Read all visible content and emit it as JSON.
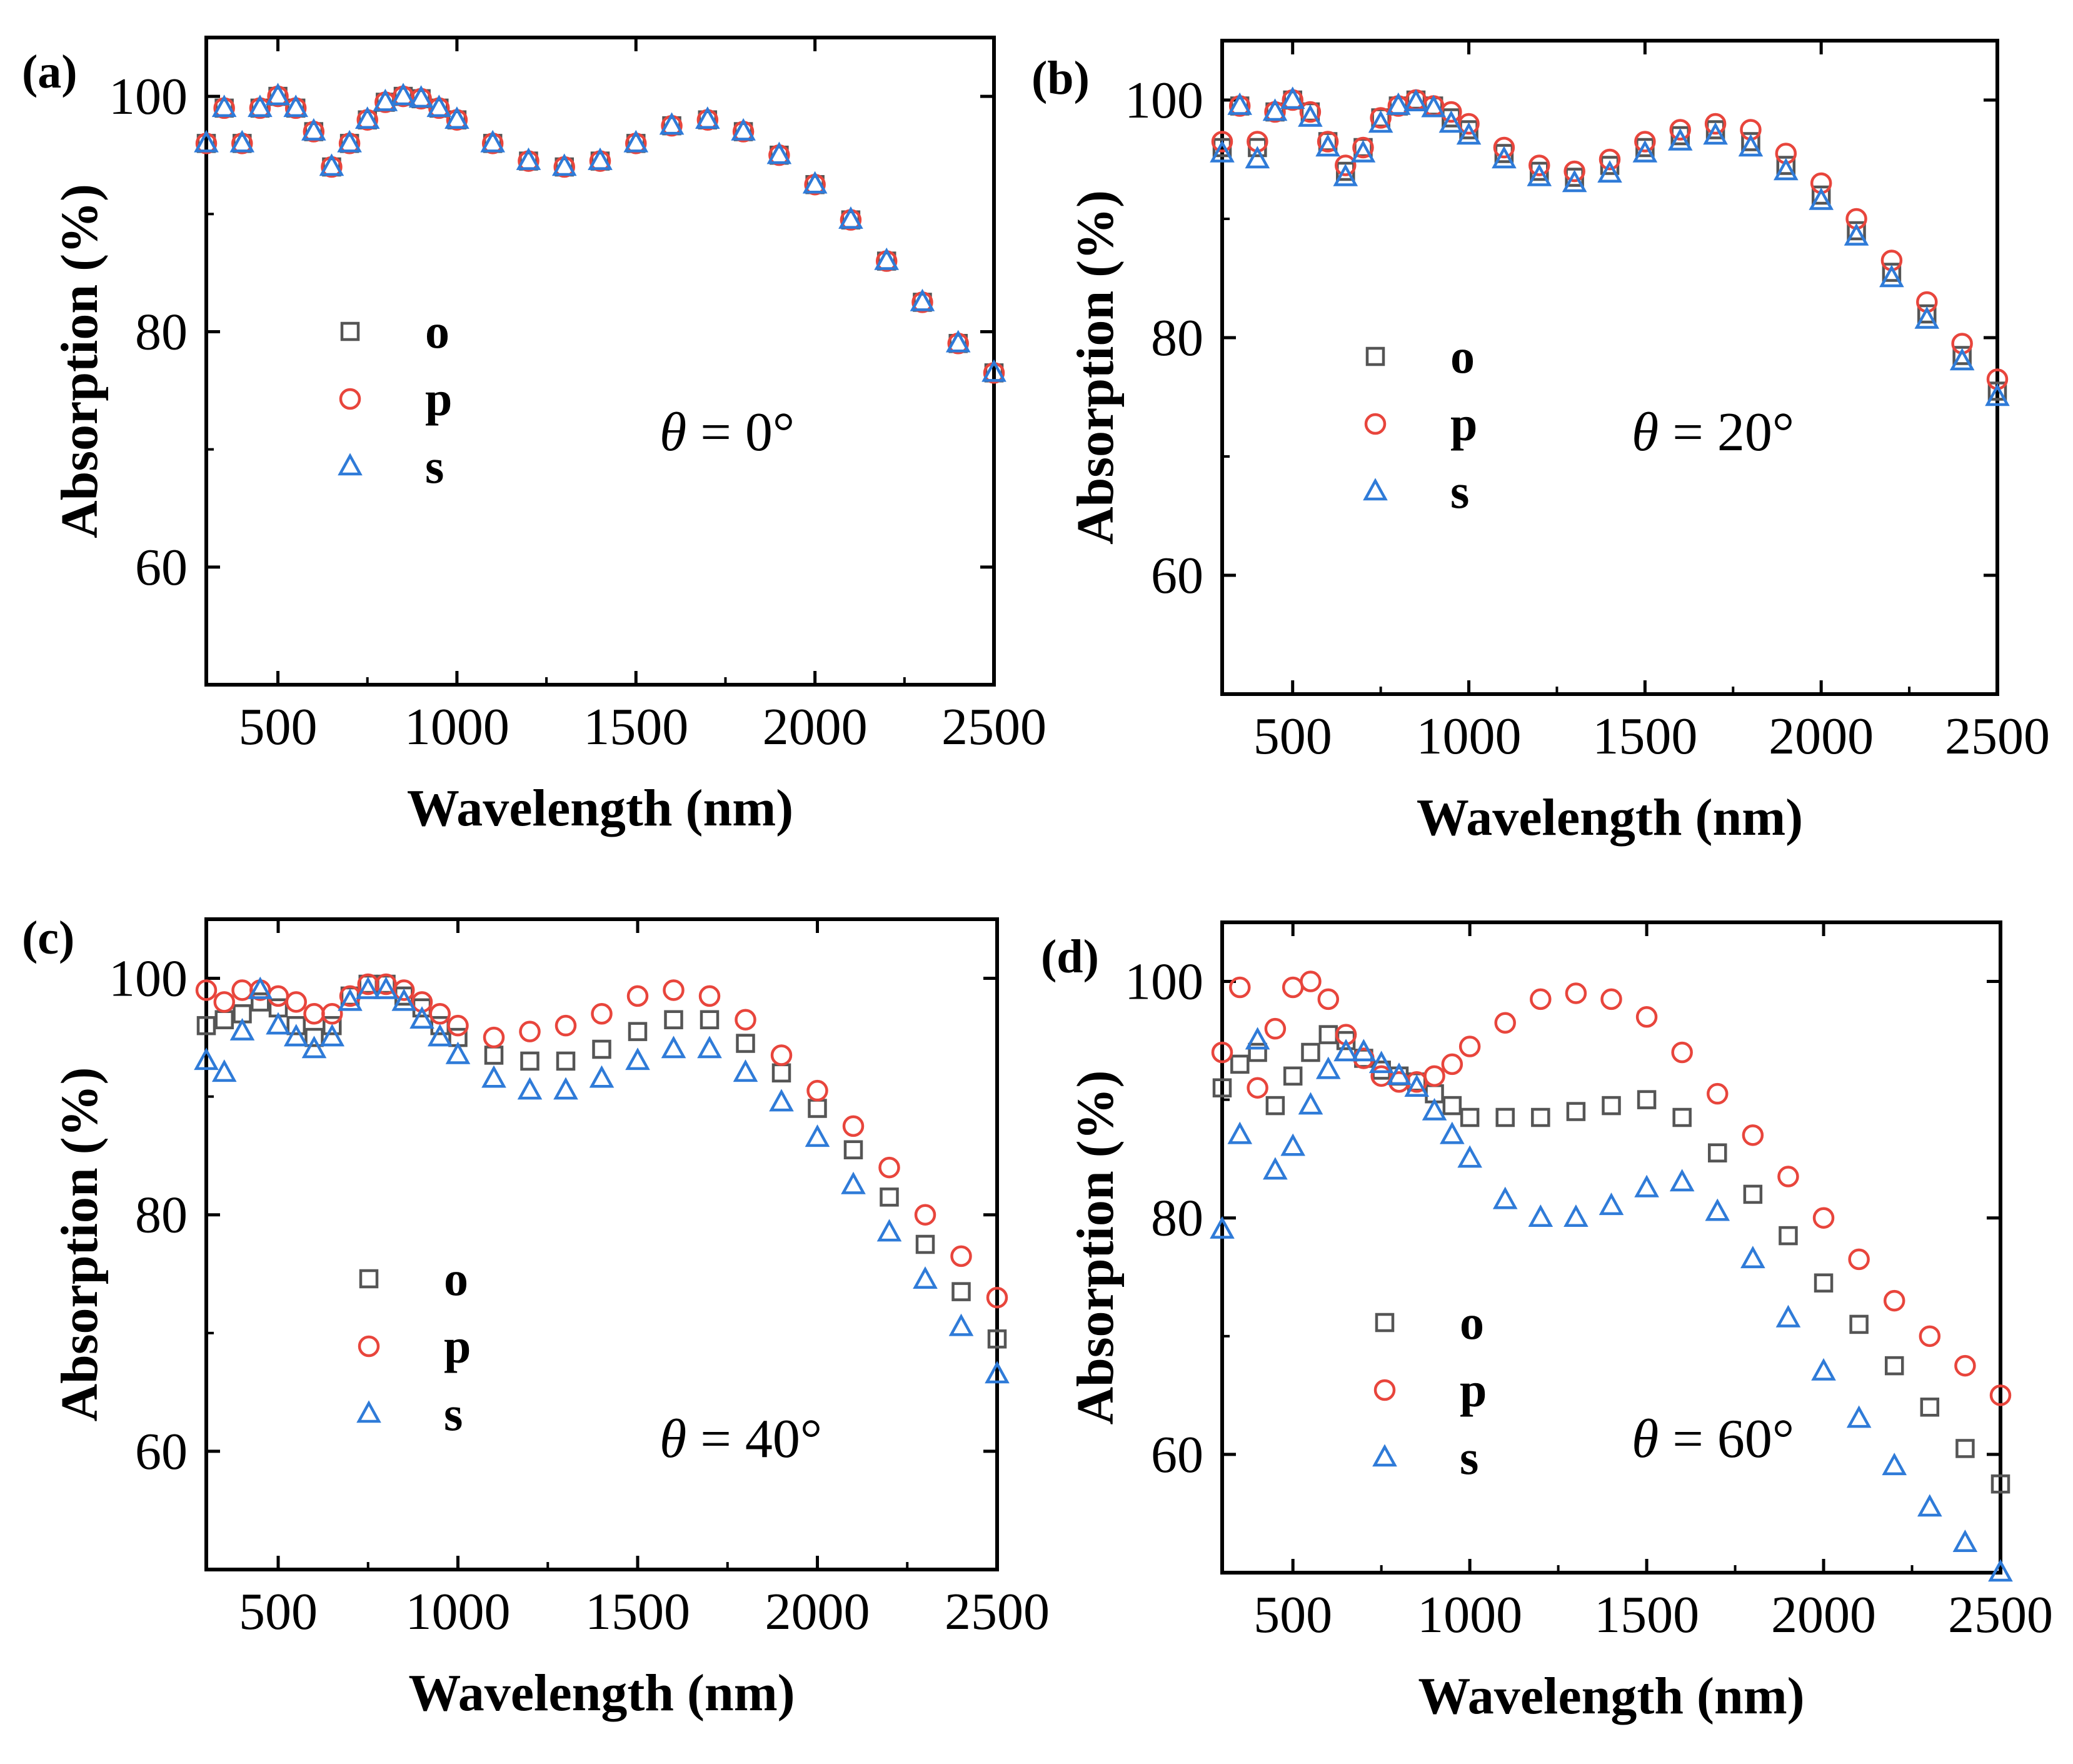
{
  "figure": {
    "series_styles": {
      "o": {
        "marker": "square",
        "color": "#555555"
      },
      "p": {
        "marker": "circle",
        "color": "#e8453c"
      },
      "s": {
        "marker": "triangle",
        "color": "#2f7bd8"
      }
    }
  },
  "chart_data": [
    {
      "type": "scatter",
      "panel_label": "(a)",
      "annotation_symbol": "θ",
      "annotation_value": " = 0°",
      "xlabel": "Wavelength (nm)",
      "ylabel": "Absorption (%)",
      "xlim": [
        300,
        2500
      ],
      "ylim": [
        50,
        105
      ],
      "xticks": [
        500,
        1000,
        1500,
        2000,
        2500
      ],
      "yticks": [
        60,
        80,
        100
      ],
      "legend": [
        "o",
        "p",
        "s"
      ],
      "x": [
        300,
        350,
        400,
        450,
        500,
        550,
        600,
        650,
        700,
        750,
        800,
        850,
        900,
        950,
        1000,
        1100,
        1200,
        1300,
        1400,
        1500,
        1600,
        1700,
        1800,
        1900,
        2000,
        2100,
        2200,
        2300,
        2400,
        2500
      ],
      "series": [
        {
          "name": "o",
          "values": [
            96,
            99,
            96,
            99,
            100,
            99,
            97,
            94,
            96,
            98,
            99.5,
            100,
            99.8,
            99,
            98,
            96,
            94.5,
            94,
            94.5,
            96,
            97.5,
            98,
            97,
            95,
            92.5,
            89.5,
            86,
            82.5,
            79,
            76.5
          ]
        },
        {
          "name": "p",
          "values": [
            96,
            99,
            96,
            99,
            100,
            99,
            97,
            94,
            96,
            98,
            99.5,
            100,
            99.8,
            99,
            98,
            96,
            94.5,
            94,
            94.5,
            96,
            97.5,
            98,
            97,
            95,
            92.5,
            89.5,
            86,
            82.5,
            79,
            76.5
          ]
        },
        {
          "name": "s",
          "values": [
            96,
            99,
            96,
            99,
            100,
            99,
            97,
            94,
            96,
            98,
            99.5,
            100,
            99.8,
            99,
            98,
            96,
            94.5,
            94,
            94.5,
            96,
            97.5,
            98,
            97,
            95,
            92.5,
            89.5,
            86,
            82.5,
            79,
            76.5
          ]
        }
      ]
    },
    {
      "type": "scatter",
      "panel_label": "(b)",
      "annotation_symbol": "θ",
      "annotation_value": " = 20°",
      "xlabel": "Wavelength (nm)",
      "ylabel": "Absorption (%)",
      "xlim": [
        300,
        2500
      ],
      "ylim": [
        50,
        105
      ],
      "xticks": [
        500,
        1000,
        1500,
        2000,
        2500
      ],
      "yticks": [
        60,
        80,
        100
      ],
      "legend": [
        "o",
        "p",
        "s"
      ],
      "x": [
        300,
        350,
        400,
        450,
        500,
        550,
        600,
        650,
        700,
        750,
        800,
        850,
        900,
        950,
        1000,
        1100,
        1200,
        1300,
        1400,
        1500,
        1600,
        1700,
        1800,
        1900,
        2000,
        2100,
        2200,
        2300,
        2400,
        2500
      ],
      "series": [
        {
          "name": "o",
          "values": [
            96,
            99.5,
            96,
            99,
            100,
            99,
            96.5,
            94,
            96,
            98.5,
            99.5,
            100,
            99.5,
            98.5,
            97.5,
            95.5,
            94,
            93.5,
            94.5,
            96,
            97,
            97.5,
            96.5,
            94.5,
            92,
            89,
            85.5,
            82,
            78.5,
            75.5
          ]
        },
        {
          "name": "p",
          "values": [
            96.5,
            99.5,
            96.5,
            99,
            100,
            99,
            96.5,
            94.5,
            96,
            98.5,
            99.5,
            100,
            99.5,
            99,
            98,
            96,
            94.5,
            94,
            95,
            96.5,
            97.5,
            98,
            97.5,
            95.5,
            93,
            90,
            86.5,
            83,
            79.5,
            76.5
          ]
        },
        {
          "name": "s",
          "values": [
            95.5,
            99.5,
            95,
            99,
            100,
            98.5,
            96,
            93.5,
            95.5,
            98,
            99.5,
            99.8,
            99.3,
            98,
            97,
            95,
            93.5,
            93,
            93.8,
            95.5,
            96.5,
            97,
            96,
            94,
            91.5,
            88.5,
            85,
            81.5,
            78,
            75
          ]
        }
      ]
    },
    {
      "type": "scatter",
      "panel_label": "(c)",
      "annotation_symbol": "θ",
      "annotation_value": " = 40°",
      "xlabel": "Wavelength (nm)",
      "ylabel": "Absorption (%)",
      "xlim": [
        300,
        2500
      ],
      "ylim": [
        50,
        105
      ],
      "xticks": [
        500,
        1000,
        1500,
        2000,
        2500
      ],
      "yticks": [
        60,
        80,
        100
      ],
      "legend": [
        "o",
        "p",
        "s"
      ],
      "x": [
        300,
        350,
        400,
        450,
        500,
        550,
        600,
        650,
        700,
        750,
        800,
        850,
        900,
        950,
        1000,
        1100,
        1200,
        1300,
        1400,
        1500,
        1600,
        1700,
        1800,
        1900,
        2000,
        2100,
        2200,
        2300,
        2400,
        2500
      ],
      "series": [
        {
          "name": "o",
          "values": [
            96,
            96.5,
            97,
            98,
            97.5,
            96,
            95,
            96,
            98.5,
            99.5,
            99.5,
            98.5,
            97.5,
            96,
            95,
            93.5,
            93,
            93,
            94,
            95.5,
            96.5,
            96.5,
            94.5,
            92,
            89,
            85.5,
            81.5,
            77.5,
            73.5,
            69.5
          ]
        },
        {
          "name": "p",
          "values": [
            99,
            98,
            99,
            99,
            98.5,
            98,
            97,
            97,
            98.5,
            99.5,
            99.5,
            99,
            98,
            97,
            96,
            95,
            95.5,
            96,
            97,
            98.5,
            99,
            98.5,
            96.5,
            93.5,
            90.5,
            87.5,
            84,
            80,
            76.5,
            73
          ]
        },
        {
          "name": "s",
          "values": [
            93,
            92,
            95.5,
            99,
            96,
            95,
            94,
            95,
            98,
            99,
            99,
            98,
            96.5,
            95,
            93.5,
            91.5,
            90.5,
            90.5,
            91.5,
            93,
            94,
            94,
            92,
            89.5,
            86.5,
            82.5,
            78.5,
            74.5,
            70.5,
            66.5
          ]
        }
      ]
    },
    {
      "type": "scatter",
      "panel_label": "(d)",
      "annotation_symbol": "θ",
      "annotation_value": " = 60°",
      "xlabel": "Wavelength (nm)",
      "ylabel": "Absorption (%)",
      "xlim": [
        300,
        2500
      ],
      "ylim": [
        50,
        105
      ],
      "xticks": [
        500,
        1000,
        1500,
        2000,
        2500
      ],
      "yticks": [
        60,
        80,
        100
      ],
      "legend": [
        "o",
        "p",
        "s"
      ],
      "x": [
        300,
        350,
        400,
        450,
        500,
        550,
        600,
        650,
        700,
        750,
        800,
        850,
        900,
        950,
        1000,
        1100,
        1200,
        1300,
        1400,
        1500,
        1600,
        1700,
        1800,
        1900,
        2000,
        2100,
        2200,
        2300,
        2400,
        2500
      ],
      "series": [
        {
          "name": "o",
          "values": [
            91,
            93,
            94,
            89.5,
            92,
            94,
            95.5,
            95,
            93.5,
            92.5,
            92,
            91.5,
            90.5,
            89.5,
            88.5,
            88.5,
            88.5,
            89,
            89.5,
            90,
            88.5,
            85.5,
            82,
            78.5,
            74.5,
            71,
            67.5,
            64,
            60.5,
            57.5
          ]
        },
        {
          "name": "p",
          "values": [
            94,
            99.5,
            91,
            96,
            99.5,
            100,
            98.5,
            95.5,
            93.5,
            92,
            91.5,
            91.5,
            92,
            93,
            94.5,
            96.5,
            98.5,
            99,
            98.5,
            97,
            94,
            90.5,
            87,
            83.5,
            80,
            76.5,
            73,
            70,
            67.5,
            65
          ]
        },
        {
          "name": "s",
          "values": [
            79,
            87,
            95,
            84,
            86,
            89.5,
            92.5,
            94,
            94,
            93,
            92,
            91,
            89,
            87,
            85,
            81.5,
            80,
            80,
            81,
            82.5,
            83,
            80.5,
            76.5,
            71.5,
            67,
            63,
            59,
            55.5,
            52.5,
            50
          ]
        }
      ]
    }
  ]
}
